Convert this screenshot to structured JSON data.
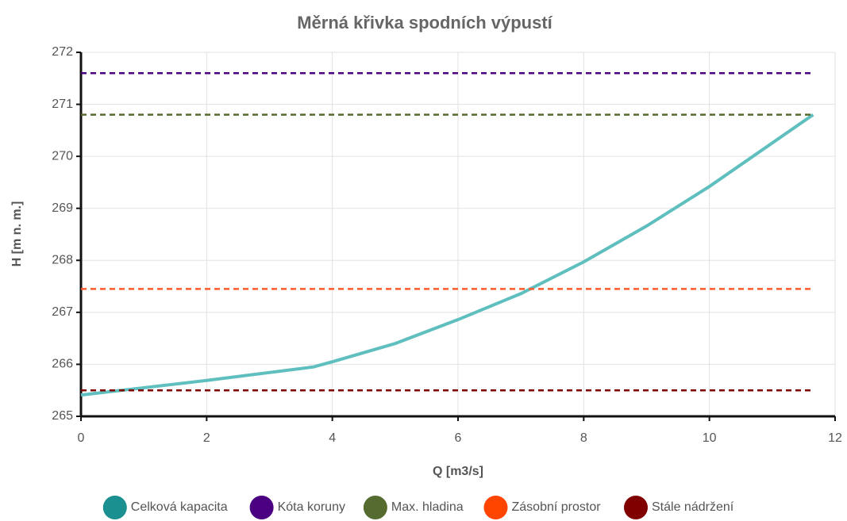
{
  "chart_data": {
    "type": "line",
    "title": "Měrná křivka spodních výpustí",
    "xlabel": "Q [m3/s]",
    "ylabel": "H [m n. m.]",
    "xlim": [
      0,
      12
    ],
    "xticks": [
      0,
      2,
      4,
      6,
      8,
      10,
      12
    ],
    "ylim": [
      265,
      272
    ],
    "yticks": [
      265,
      266,
      267,
      268,
      269,
      270,
      271,
      272
    ],
    "grid": true,
    "legend": "bottom",
    "series": [
      {
        "name": "Celková kapacita",
        "color": "#5fbfbf",
        "legend_color": "#1a9090",
        "dash": false,
        "x": [
          0,
          2,
          3.7,
          4,
          5,
          6,
          7,
          8,
          9,
          10,
          11.65
        ],
        "values": [
          265.41,
          265.69,
          265.95,
          266.05,
          266.4,
          266.86,
          267.36,
          267.97,
          268.66,
          269.42,
          270.8
        ]
      },
      {
        "name": "Kóta koruny",
        "color": "#4b0082",
        "legend_color": "#4b0082",
        "dash": true,
        "x": [
          0,
          11.65
        ],
        "values": [
          271.6,
          271.6
        ]
      },
      {
        "name": "Max. hladina",
        "color": "#556b2f",
        "legend_color": "#556b2f",
        "dash": true,
        "x": [
          0,
          11.65
        ],
        "values": [
          270.8,
          270.8
        ]
      },
      {
        "name": "Zásobní prostor",
        "color": "#ff5a2a",
        "legend_color": "#ff4500",
        "dash": true,
        "x": [
          0,
          11.65
        ],
        "values": [
          267.45,
          267.45
        ]
      },
      {
        "name": "Stále nádržení",
        "color": "#800000",
        "legend_color": "#800000",
        "dash": true,
        "x": [
          0,
          11.65
        ],
        "values": [
          265.5,
          265.5
        ]
      }
    ]
  }
}
